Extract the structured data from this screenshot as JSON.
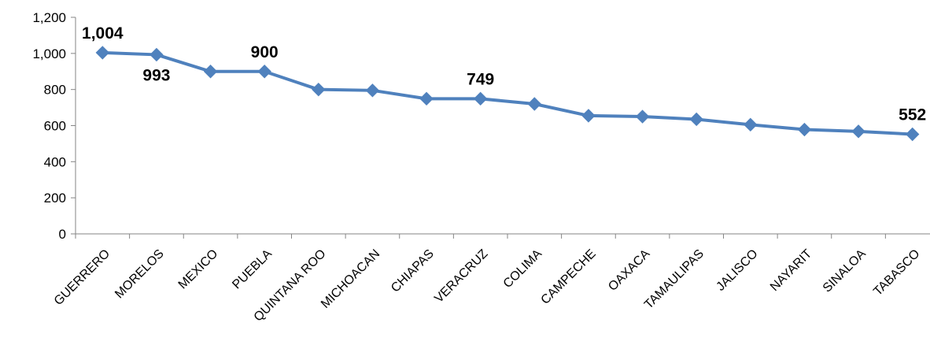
{
  "chart_data": {
    "type": "line",
    "title": "",
    "xlabel": "",
    "ylabel": "",
    "ylim": [
      0,
      1200
    ],
    "yticks": [
      0,
      200,
      400,
      600,
      800,
      1000,
      1200
    ],
    "ytick_labels": [
      "0",
      "200",
      "400",
      "600",
      "800",
      "1,000",
      "1,200"
    ],
    "grid": false,
    "legend": "none",
    "color": "#4F81BD",
    "marker": "diamond",
    "categories": [
      "GUERRERO",
      "MORELOS",
      "MEXICO",
      "PUEBLA",
      "QUINTANA ROO",
      "MICHOACAN",
      "CHIAPAS",
      "VERACRUZ",
      "COLIMA",
      "CAMPECHE",
      "OAXACA",
      "TAMAULIPAS",
      "JALISCO",
      "NAYARIT",
      "SINALOA",
      "TABASCO"
    ],
    "series": [
      {
        "values": [
          1004,
          993,
          900,
          900,
          800,
          795,
          749,
          749,
          720,
          655,
          650,
          635,
          605,
          578,
          568,
          552
        ]
      }
    ],
    "data_labels": [
      {
        "index": 0,
        "text": "1,004"
      },
      {
        "index": 1,
        "text": "993"
      },
      {
        "index": 3,
        "text": "900"
      },
      {
        "index": 7,
        "text": "749"
      },
      {
        "index": 15,
        "text": "552"
      }
    ]
  }
}
